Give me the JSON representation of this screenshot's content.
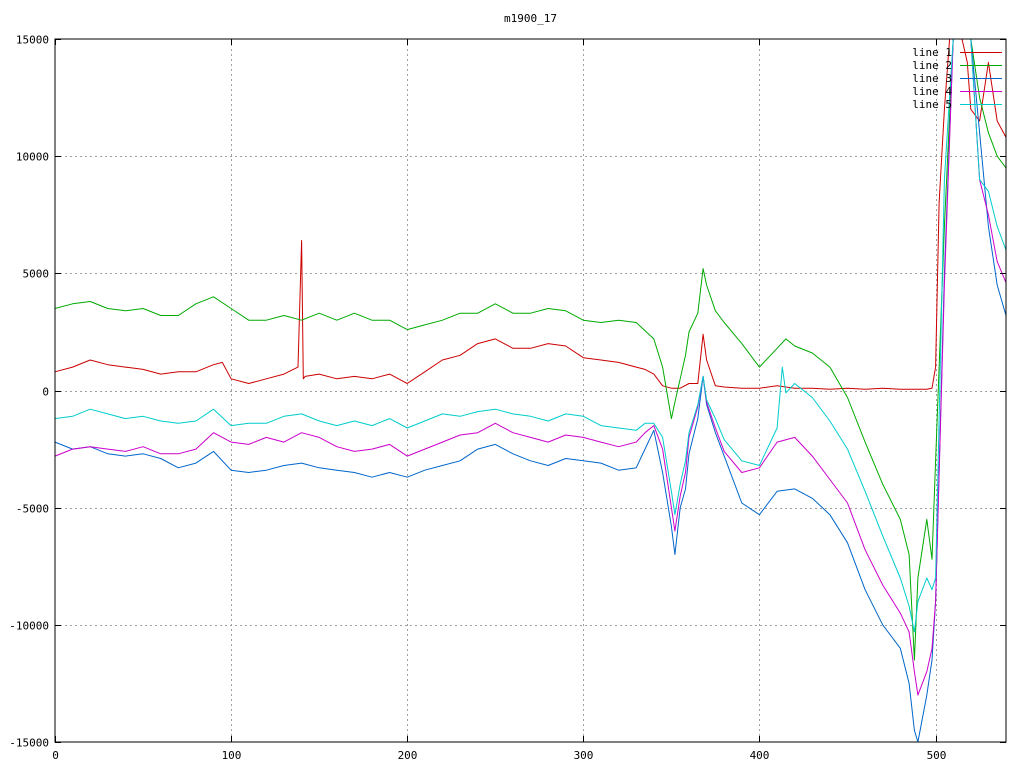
{
  "chart_data": {
    "type": "line",
    "title": "m1900_17",
    "xlim": [
      0,
      540
    ],
    "ylim": [
      -15000,
      15000
    ],
    "xticks": [
      0,
      100,
      200,
      300,
      400,
      500
    ],
    "yticks": [
      -15000,
      -10000,
      -5000,
      0,
      5000,
      10000,
      15000
    ],
    "grid": true,
    "legend_position": "top-right",
    "series": [
      {
        "name": "line 1",
        "color": "#cc0000",
        "x": [
          0,
          10,
          20,
          30,
          40,
          50,
          60,
          70,
          80,
          90,
          95,
          100,
          110,
          120,
          130,
          138,
          140,
          141,
          142,
          150,
          160,
          170,
          180,
          190,
          200,
          210,
          220,
          230,
          240,
          250,
          260,
          270,
          280,
          290,
          300,
          310,
          320,
          330,
          335,
          340,
          345,
          350,
          355,
          360,
          365,
          368,
          370,
          375,
          380,
          390,
          400,
          410,
          420,
          430,
          440,
          450,
          460,
          470,
          480,
          490,
          495,
          498,
          500,
          502,
          505,
          508,
          510,
          515,
          518,
          520,
          525,
          530,
          535,
          540
        ],
        "y": [
          800,
          1000,
          1300,
          1100,
          1000,
          900,
          700,
          800,
          800,
          1100,
          1200,
          500,
          300,
          500,
          700,
          1000,
          6400,
          500,
          600,
          700,
          500,
          600,
          500,
          700,
          300,
          800,
          1300,
          1500,
          2000,
          2200,
          1800,
          1800,
          2000,
          1900,
          1400,
          1300,
          1200,
          1000,
          900,
          700,
          200,
          100,
          100,
          300,
          300,
          2400,
          1300,
          200,
          150,
          100,
          100,
          200,
          100,
          100,
          50,
          100,
          50,
          100,
          50,
          50,
          50,
          100,
          1000,
          8000,
          12000,
          15000,
          15000,
          15000,
          14000,
          12000,
          11500,
          14000,
          11500,
          10800
        ]
      },
      {
        "name": "line 2",
        "color": "#00aa00",
        "x": [
          0,
          10,
          20,
          30,
          40,
          50,
          60,
          70,
          80,
          90,
          100,
          110,
          120,
          130,
          140,
          150,
          160,
          170,
          180,
          190,
          200,
          210,
          220,
          230,
          240,
          250,
          260,
          270,
          280,
          290,
          300,
          310,
          320,
          330,
          340,
          345,
          350,
          352,
          355,
          358,
          360,
          365,
          368,
          370,
          375,
          380,
          390,
          400,
          410,
          415,
          420,
          430,
          440,
          450,
          460,
          470,
          480,
          485,
          488,
          490,
          495,
          498,
          500,
          505,
          510,
          520,
          525,
          530,
          535,
          540
        ],
        "y": [
          3500,
          3700,
          3800,
          3500,
          3400,
          3500,
          3200,
          3200,
          3700,
          4000,
          3500,
          3000,
          3000,
          3200,
          3000,
          3300,
          3000,
          3300,
          3000,
          3000,
          2600,
          2800,
          3000,
          3300,
          3300,
          3700,
          3300,
          3300,
          3500,
          3400,
          3000,
          2900,
          3000,
          2900,
          2200,
          1000,
          -1200,
          -500,
          500,
          1500,
          2500,
          3300,
          5200,
          4500,
          3400,
          2900,
          2000,
          1000,
          1800,
          2200,
          1900,
          1600,
          1000,
          -300,
          -2200,
          -4000,
          -5500,
          -7000,
          -11500,
          -8000,
          -5500,
          -7200,
          -3000,
          7000,
          15000,
          15000,
          12500,
          11000,
          10000,
          9500
        ]
      },
      {
        "name": "line 3",
        "color": "#0066cc",
        "x": [
          0,
          10,
          20,
          30,
          40,
          50,
          60,
          70,
          80,
          90,
          100,
          110,
          120,
          130,
          140,
          150,
          160,
          170,
          180,
          190,
          200,
          210,
          220,
          230,
          240,
          250,
          260,
          270,
          280,
          290,
          300,
          310,
          320,
          330,
          335,
          340,
          345,
          350,
          352,
          355,
          358,
          360,
          365,
          368,
          370,
          375,
          380,
          390,
          400,
          410,
          420,
          430,
          440,
          450,
          460,
          470,
          480,
          485,
          488,
          490,
          495,
          498,
          500,
          505,
          510,
          520,
          525,
          530,
          535,
          540
        ],
        "y": [
          -2200,
          -2500,
          -2400,
          -2700,
          -2800,
          -2700,
          -2900,
          -3300,
          -3100,
          -2600,
          -3400,
          -3500,
          -3400,
          -3200,
          -3100,
          -3300,
          -3400,
          -3500,
          -3700,
          -3500,
          -3700,
          -3400,
          -3200,
          -3000,
          -2500,
          -2300,
          -2700,
          -3000,
          -3200,
          -2900,
          -3000,
          -3100,
          -3400,
          -3300,
          -2500,
          -1700,
          -3500,
          -5800,
          -7000,
          -5000,
          -4200,
          -2700,
          -1200,
          600,
          -600,
          -1800,
          -2800,
          -4800,
          -5300,
          -4300,
          -4200,
          -4600,
          -5300,
          -6500,
          -8500,
          -10000,
          -11000,
          -12500,
          -14500,
          -15000,
          -13000,
          -11500,
          -9000,
          5000,
          15000,
          15000,
          11000,
          7000,
          4500,
          3200
        ]
      },
      {
        "name": "line 4",
        "color": "#cc00cc",
        "x": [
          0,
          10,
          20,
          30,
          40,
          50,
          60,
          70,
          80,
          90,
          100,
          110,
          120,
          130,
          140,
          150,
          160,
          170,
          180,
          190,
          200,
          210,
          220,
          230,
          240,
          250,
          260,
          270,
          280,
          290,
          300,
          310,
          320,
          330,
          335,
          340,
          345,
          350,
          352,
          355,
          358,
          360,
          365,
          368,
          370,
          375,
          380,
          390,
          400,
          410,
          420,
          430,
          440,
          450,
          460,
          470,
          480,
          485,
          488,
          490,
          495,
          498,
          500,
          505,
          510,
          520,
          525,
          530,
          535,
          540
        ],
        "y": [
          -2800,
          -2500,
          -2400,
          -2500,
          -2600,
          -2400,
          -2700,
          -2700,
          -2500,
          -1800,
          -2200,
          -2300,
          -2000,
          -2200,
          -1800,
          -2000,
          -2400,
          -2600,
          -2500,
          -2300,
          -2800,
          -2500,
          -2200,
          -1900,
          -1800,
          -1400,
          -1800,
          -2000,
          -2200,
          -1900,
          -2000,
          -2200,
          -2400,
          -2200,
          -1800,
          -1500,
          -2500,
          -5000,
          -6000,
          -4500,
          -3500,
          -2000,
          -700,
          600,
          -500,
          -1600,
          -2600,
          -3500,
          -3300,
          -2200,
          -2000,
          -2800,
          -3800,
          -4800,
          -6800,
          -8300,
          -9500,
          -10300,
          -12000,
          -13000,
          -12000,
          -11000,
          -9000,
          4500,
          15000,
          15000,
          9000,
          7500,
          5500,
          4600
        ]
      },
      {
        "name": "line 5",
        "color": "#00cccc",
        "x": [
          0,
          10,
          20,
          30,
          40,
          50,
          60,
          70,
          80,
          90,
          100,
          110,
          120,
          130,
          140,
          150,
          160,
          170,
          180,
          190,
          200,
          210,
          220,
          230,
          240,
          250,
          260,
          270,
          280,
          290,
          300,
          310,
          320,
          330,
          335,
          340,
          345,
          350,
          352,
          355,
          358,
          360,
          365,
          368,
          370,
          375,
          380,
          390,
          400,
          410,
          413,
          415,
          420,
          430,
          440,
          450,
          460,
          470,
          480,
          485,
          488,
          490,
          495,
          498,
          500,
          505,
          510,
          520,
          525,
          530,
          535,
          540
        ],
        "y": [
          -1200,
          -1100,
          -800,
          -1000,
          -1200,
          -1100,
          -1300,
          -1400,
          -1300,
          -800,
          -1500,
          -1400,
          -1400,
          -1100,
          -1000,
          -1300,
          -1500,
          -1300,
          -1500,
          -1200,
          -1600,
          -1300,
          -1000,
          -1100,
          -900,
          -800,
          -1000,
          -1100,
          -1300,
          -1000,
          -1100,
          -1500,
          -1600,
          -1700,
          -1400,
          -1400,
          -2000,
          -4300,
          -5300,
          -4000,
          -3000,
          -1800,
          -600,
          600,
          -400,
          -1200,
          -2100,
          -3000,
          -3200,
          -1600,
          1000,
          -100,
          300,
          -300,
          -1300,
          -2500,
          -4300,
          -6200,
          -8000,
          -9200,
          -10300,
          -9000,
          -8000,
          -8500,
          -8000,
          9000,
          15000,
          15000,
          9000,
          8500,
          7000,
          6000
        ]
      }
    ]
  }
}
